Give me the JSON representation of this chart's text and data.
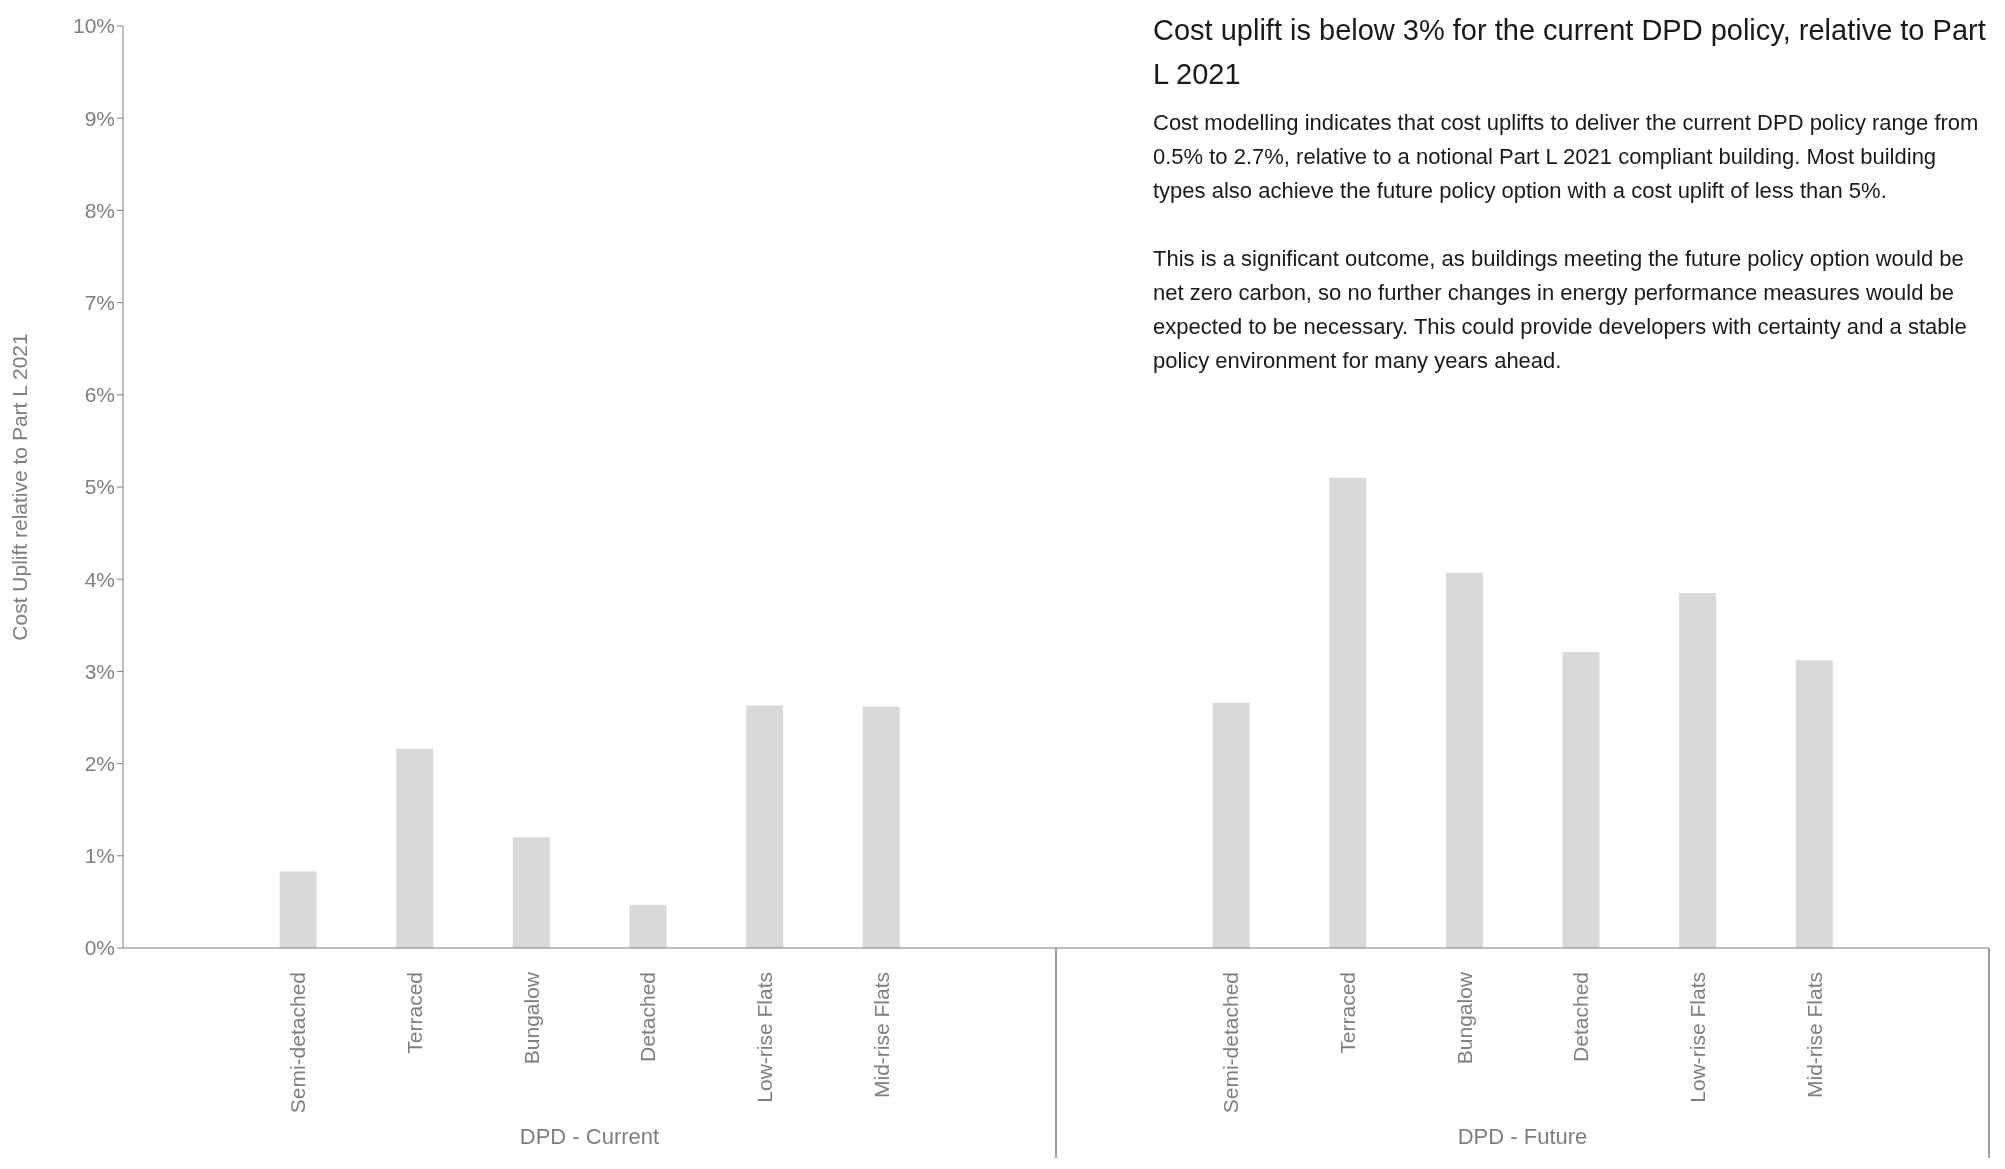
{
  "chart_data": {
    "type": "bar",
    "title": "Cost uplift is below 3% for the current DPD policy, relative to Part L 2021",
    "subtitle": "Cost modelling indicates that cost uplifts to deliver the current DPD policy range from 0.5% to 2.7%, relative to a notional Part L 2021 compliant building. Most building types also achieve the future policy option with a cost uplift of less than 5%.\n\nThis is a significant outcome, as buildings meeting the future policy option would be net zero carbon, so no further changes in energy performance measures would be expected to be necessary. This could provide developers with certainty and a stable policy environment for many years ahead.",
    "ylabel": "Cost Uplift relative to Part L 2021",
    "annotations": [
      "DPD - Current",
      "DPD - Future"
    ],
    "categories": [
      null,
      "Semi-detached",
      "Terraced",
      "Bungalow",
      "Detached",
      "Low-rise Flats",
      "Mid-rise Flats",
      null,
      null,
      "Semi-detached",
      "Terraced",
      "Bungalow",
      "Detached",
      "Low-rise Flats",
      "Mid-rise Flats",
      null
    ],
    "values": [
      null,
      0.83,
      2.16,
      1.2,
      0.47,
      2.63,
      2.62,
      null,
      null,
      2.66,
      5.1,
      4.07,
      3.21,
      3.85,
      3.12,
      null
    ],
    "color": "#d9d9d9",
    "ylim": [
      0,
      10
    ],
    "yticks": [
      {
        "value": 0,
        "label": "0%"
      },
      {
        "value": 1,
        "label": "1%"
      },
      {
        "value": 2,
        "label": "2%"
      },
      {
        "value": 3,
        "label": "3%"
      },
      {
        "value": 4,
        "label": "4%"
      },
      {
        "value": 5,
        "label": "5%"
      },
      {
        "value": 6,
        "label": "6%"
      },
      {
        "value": 7,
        "label": "7%"
      },
      {
        "value": 8,
        "label": "8%"
      },
      {
        "value": 9,
        "label": "9%"
      },
      {
        "value": 10,
        "label": "10%"
      }
    ],
    "grid": false
  }
}
